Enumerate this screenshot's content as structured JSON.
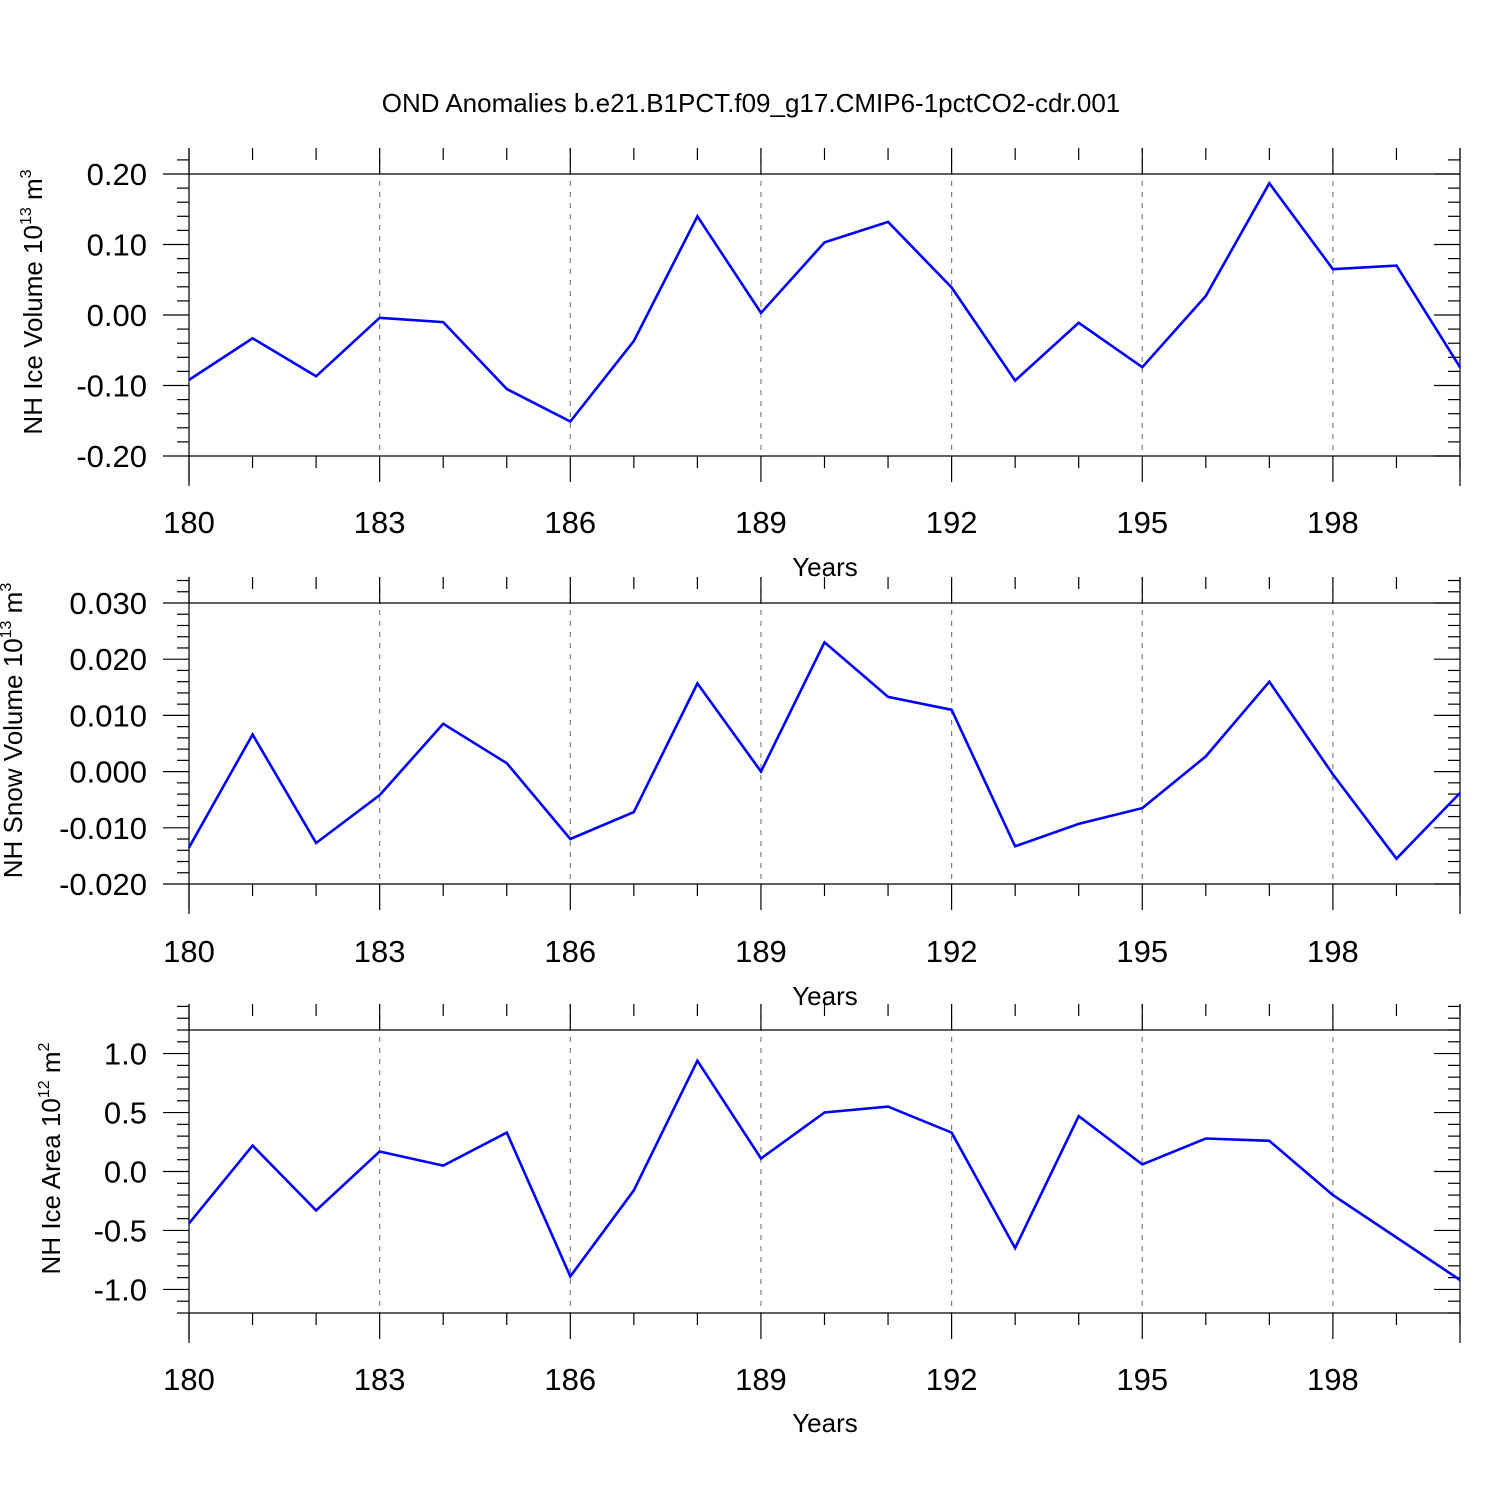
{
  "title": "OND Anomalies b.e21.B1PCT.f09_g17.CMIP6-1pctCO2-cdr.001",
  "line_color": "#0000ff",
  "chart_data": [
    {
      "type": "line",
      "ylabel": "NH Ice Volume 10",
      "ylabel_exp": "13",
      "ylabel_unit": "m",
      "ylabel_unit_exp": "3",
      "xlabel": "Years",
      "xlim": [
        180,
        200
      ],
      "ylim": [
        -0.2,
        0.2
      ],
      "xticks": [
        "180",
        "183",
        "186",
        "189",
        "192",
        "195",
        "198"
      ],
      "yticks": [
        "-0.20",
        "-0.10",
        "0.00",
        "0.10",
        "0.20"
      ],
      "x": [
        180,
        181,
        182,
        183,
        184,
        185,
        186,
        187,
        188,
        189,
        190,
        191,
        192,
        193,
        194,
        195,
        196,
        197,
        198,
        199,
        200
      ],
      "y": [
        -0.092,
        -0.033,
        -0.087,
        -0.004,
        -0.01,
        -0.105,
        -0.151,
        -0.037,
        0.14,
        0.003,
        0.103,
        0.132,
        0.039,
        -0.093,
        -0.011,
        -0.074,
        0.027,
        0.187,
        0.065,
        0.07,
        -0.074
      ]
    },
    {
      "type": "line",
      "ylabel": "NH Snow Volume 10",
      "ylabel_exp": "13",
      "ylabel_unit": "m",
      "ylabel_unit_exp": "3",
      "xlabel": "Years",
      "xlim": [
        180,
        200
      ],
      "ylim": [
        -0.02,
        0.03
      ],
      "xticks": [
        "180",
        "183",
        "186",
        "189",
        "192",
        "195",
        "198"
      ],
      "yticks": [
        "-0.020",
        "-0.010",
        "0.000",
        "0.010",
        "0.020",
        "0.030"
      ],
      "x": [
        180,
        181,
        182,
        183,
        184,
        185,
        186,
        187,
        188,
        189,
        190,
        191,
        192,
        193,
        194,
        195,
        196,
        197,
        198,
        199,
        200
      ],
      "y": [
        -0.0135,
        0.0066,
        -0.0127,
        -0.0042,
        0.0085,
        0.0015,
        -0.012,
        -0.0072,
        0.0157,
        0.0,
        0.023,
        0.0133,
        0.011,
        -0.0133,
        -0.0093,
        -0.0065,
        0.0027,
        0.016,
        -0.0005,
        -0.0155,
        -0.0038
      ]
    },
    {
      "type": "line",
      "ylabel": "NH Ice Area 10",
      "ylabel_exp": "12",
      "ylabel_unit": "m",
      "ylabel_unit_exp": "2",
      "xlabel": "Years",
      "xlim": [
        180,
        200
      ],
      "ylim": [
        -1.2,
        1.2
      ],
      "xticks": [
        "180",
        "183",
        "186",
        "189",
        "192",
        "195",
        "198"
      ],
      "yticks": [
        "-1.0",
        "-0.5",
        "0.0",
        "0.5",
        "1.0"
      ],
      "x": [
        180,
        181,
        182,
        183,
        184,
        185,
        186,
        187,
        188,
        189,
        190,
        191,
        192,
        193,
        194,
        195,
        196,
        197,
        198,
        199,
        200
      ],
      "y": [
        -0.44,
        0.22,
        -0.33,
        0.17,
        0.05,
        0.33,
        -0.89,
        -0.16,
        0.94,
        0.11,
        0.5,
        0.55,
        0.33,
        -0.65,
        0.47,
        0.06,
        0.28,
        0.26,
        -0.2,
        -0.56,
        -0.92
      ]
    }
  ]
}
